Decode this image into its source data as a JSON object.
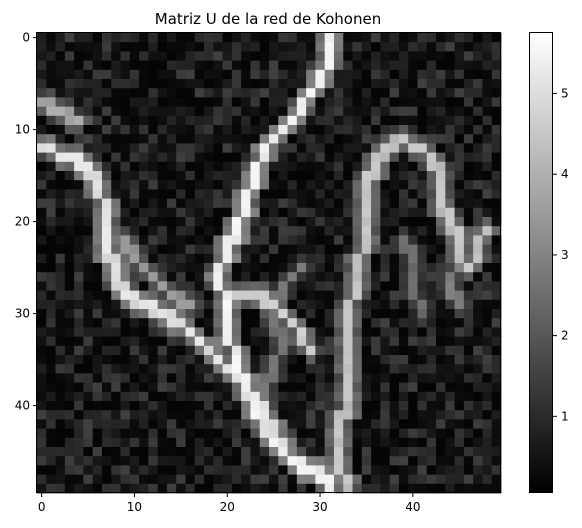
{
  "chart_data": {
    "type": "heatmap",
    "title": "Matriz U de la red de Kohonen",
    "colormap": "gray",
    "grid": false,
    "rows": 50,
    "cols": 50,
    "xlim": [
      -0.5,
      49.5
    ],
    "ylim": [
      49.5,
      -0.5
    ],
    "xticks": [
      0,
      10,
      20,
      30,
      40
    ],
    "yticks": [
      0,
      10,
      20,
      30,
      40
    ],
    "value_range": [
      0.05,
      5.75
    ],
    "colorbar": {
      "ticks": [
        1,
        2,
        3,
        4,
        5
      ],
      "position": "right"
    },
    "ridge_paths": [
      {
        "points": [
          [
            0,
            31
          ],
          [
            3,
            31
          ],
          [
            6,
            29
          ],
          [
            9,
            27
          ],
          [
            12,
            24
          ],
          [
            15,
            23
          ],
          [
            18,
            22
          ],
          [
            21,
            21
          ],
          [
            23,
            20
          ],
          [
            26,
            19
          ],
          [
            29,
            20
          ],
          [
            32,
            20
          ],
          [
            35,
            21
          ],
          [
            38,
            22
          ],
          [
            41,
            23
          ],
          [
            44,
            25
          ],
          [
            46,
            27
          ],
          [
            47,
            29
          ],
          [
            48,
            31
          ],
          [
            49,
            31
          ]
        ],
        "value": 5.6
      },
      {
        "points": [
          [
            12,
            0
          ],
          [
            13,
            3
          ],
          [
            14,
            5
          ],
          [
            16,
            6
          ],
          [
            19,
            7
          ],
          [
            22,
            7
          ],
          [
            26,
            8
          ],
          [
            28,
            9
          ],
          [
            29,
            11
          ],
          [
            30,
            13
          ],
          [
            31,
            15
          ],
          [
            33,
            17
          ],
          [
            35,
            19
          ],
          [
            37,
            21
          ],
          [
            39,
            23
          ],
          [
            41,
            24
          ],
          [
            44,
            26
          ]
        ],
        "value": 5.3
      },
      {
        "points": [
          [
            28,
            20
          ],
          [
            28,
            23
          ],
          [
            29,
            25
          ],
          [
            31,
            27
          ],
          [
            34,
            29
          ]
        ],
        "value": 4.8
      },
      {
        "points": [
          [
            7,
            0
          ],
          [
            8,
            2
          ],
          [
            9,
            4
          ]
        ],
        "value": 4.0
      },
      {
        "points": [
          [
            22,
            9
          ],
          [
            24,
            10
          ],
          [
            26,
            12
          ],
          [
            27,
            13
          ],
          [
            28,
            14
          ],
          [
            29,
            16
          ]
        ],
        "value": 3.6
      },
      {
        "points": [
          [
            21,
            48
          ],
          [
            22,
            47
          ],
          [
            24,
            47
          ],
          [
            25,
            46
          ],
          [
            24,
            45
          ],
          [
            22,
            45
          ],
          [
            20,
            44
          ],
          [
            18,
            43
          ],
          [
            15,
            43
          ],
          [
            13,
            42
          ],
          [
            12,
            41
          ],
          [
            12,
            40
          ],
          [
            11,
            39
          ],
          [
            12,
            37
          ],
          [
            14,
            36
          ],
          [
            16,
            35
          ],
          [
            19,
            35
          ],
          [
            22,
            35
          ],
          [
            25,
            34
          ],
          [
            27,
            34
          ],
          [
            30,
            33
          ],
          [
            33,
            33
          ],
          [
            36,
            33
          ],
          [
            39,
            33
          ],
          [
            43,
            32
          ],
          [
            46,
            32
          ],
          [
            49,
            33
          ]
        ],
        "value": 4.6
      },
      {
        "points": [
          [
            25,
            45
          ],
          [
            26,
            44
          ],
          [
            27,
            44
          ],
          [
            29,
            45
          ]
        ],
        "value": 3.0
      },
      {
        "points": [
          [
            25,
            28
          ],
          [
            27,
            26
          ],
          [
            29,
            25
          ],
          [
            31,
            25
          ],
          [
            33,
            26
          ],
          [
            36,
            25
          ],
          [
            38,
            24
          ],
          [
            40,
            24
          ]
        ],
        "value": 2.8
      },
      {
        "points": [
          [
            22,
            39
          ],
          [
            24,
            40
          ],
          [
            27,
            40
          ],
          [
            30,
            41
          ]
        ],
        "value": 2.6
      }
    ]
  }
}
